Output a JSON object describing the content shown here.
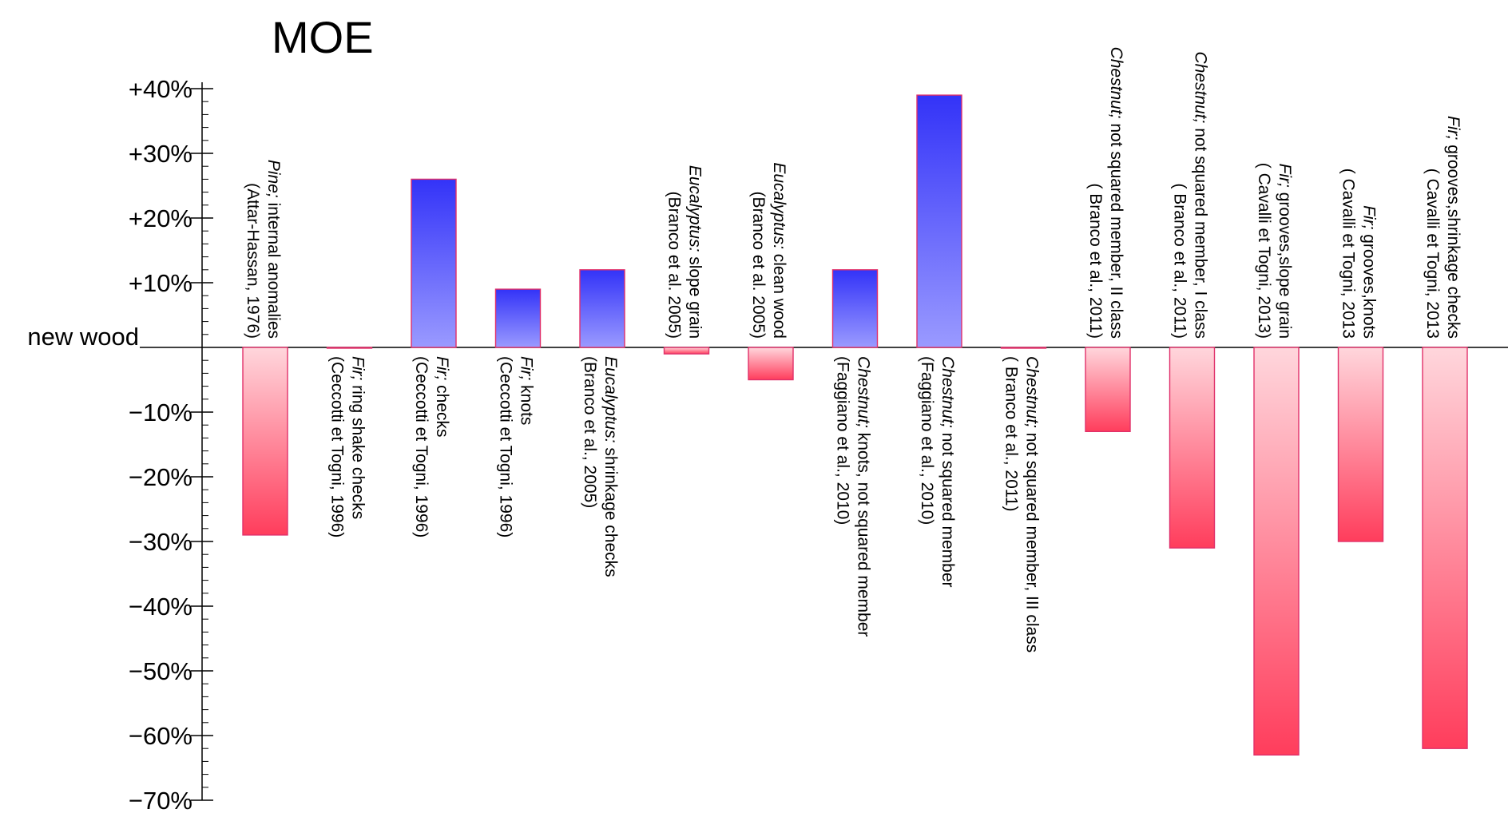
{
  "chart_data": {
    "type": "bar",
    "title": "MOE",
    "baseline_label": "new wood",
    "ylabel": "",
    "xlabel": "",
    "ylim": [
      -70,
      40
    ],
    "yticks": [
      {
        "value": 40,
        "label": "+40%"
      },
      {
        "value": 30,
        "label": "+30%"
      },
      {
        "value": 20,
        "label": "+20%"
      },
      {
        "value": 10,
        "label": "+10%"
      },
      {
        "value": -10,
        "label": "−10%"
      },
      {
        "value": -20,
        "label": "−20%"
      },
      {
        "value": -30,
        "label": "−30%"
      },
      {
        "value": -40,
        "label": "−40%"
      },
      {
        "value": -50,
        "label": "−50%"
      },
      {
        "value": -60,
        "label": "−60%"
      },
      {
        "value": -70,
        "label": "−70%"
      }
    ],
    "colors": {
      "positive": "#3d3dfa",
      "negative": "#ff3d5c",
      "outline": "#e0306a"
    },
    "bars": [
      {
        "value": -29,
        "species": "Pine",
        "desc": "internal anomalies",
        "ref": "(Attar-Hassan, 1976)"
      },
      {
        "value": 0,
        "species": "Fir",
        "desc": "ring shake checks",
        "ref": "(Ceccotti et Togni, 1996)"
      },
      {
        "value": 26,
        "species": "Fir",
        "desc": "checks",
        "ref": "(Ceccotti et Togni, 1996)"
      },
      {
        "value": 9,
        "species": "Fir",
        "desc": "knots",
        "ref": "(Ceccotti et Togni, 1996)"
      },
      {
        "value": 12,
        "species": "Eucalyptus",
        "desc": "shrinkage checks",
        "ref": "(Branco et al., 2005)"
      },
      {
        "value": -1,
        "species": "Eucalyptus",
        "desc": "slope grain",
        "ref": "(Branco et al. 2005)"
      },
      {
        "value": -5,
        "species": "Eucalyptus",
        "desc": "clean wood",
        "ref": "(Branco et al. 2005)"
      },
      {
        "value": 12,
        "species": "Chestnut",
        "desc": "knots, not squared member",
        "ref": "(Faggiano et al., 2010)"
      },
      {
        "value": 39,
        "species": "Chestnut",
        "desc": "not squared member",
        "ref": "(Faggiano et al., 2010)"
      },
      {
        "value": 0,
        "species": "Chestnut",
        "desc": "not squared member, III class",
        "ref": "( Branco et al., 2011)"
      },
      {
        "value": -13,
        "species": "Chestnut",
        "desc": "not squared member, II class",
        "ref": "( Branco et al., 2011)"
      },
      {
        "value": -31,
        "species": "Chestnut",
        "desc": "not squared member, I class",
        "ref": "( Branco et al., 2011)"
      },
      {
        "value": -63,
        "species": "Fir",
        "desc": "grooves,slope grain",
        "ref": "( Cavalli et Togni, 2013)"
      },
      {
        "value": -30,
        "species": "Fir",
        "desc": "grooves,knots",
        "ref": "( Cavalli et Togni, 2013"
      },
      {
        "value": -62,
        "species": "Fir",
        "desc": "grooves,shrinkage checks",
        "ref": "( Cavalli et Togni, 2013"
      }
    ]
  }
}
